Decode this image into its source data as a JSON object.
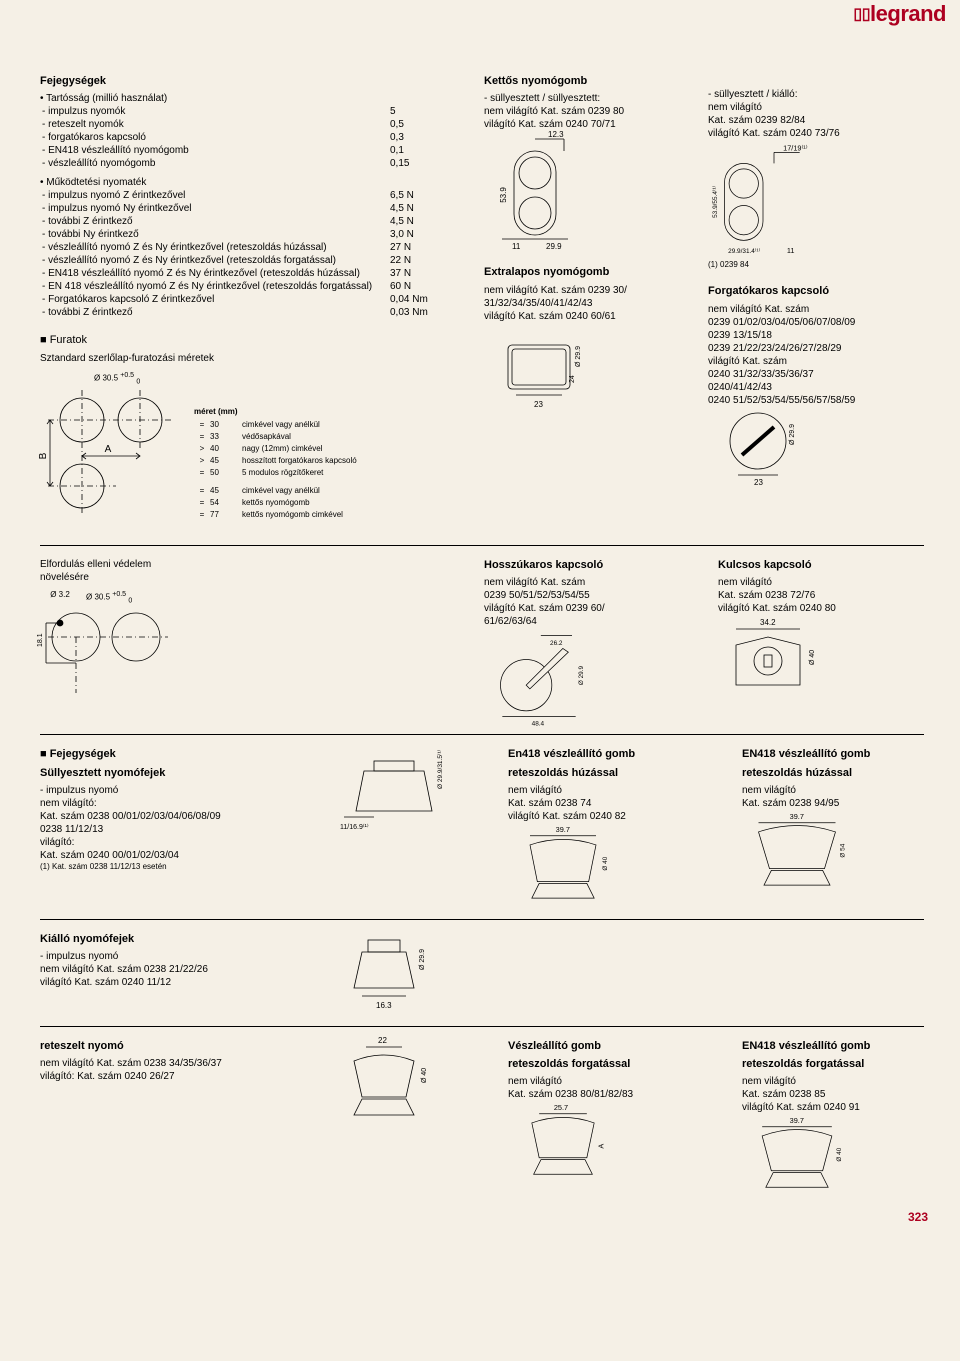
{
  "brand": "legrand",
  "page_number": "323",
  "sec_heads": {
    "title": "Fejegységek",
    "durability_hdr": "• Tartósság (millió használat)",
    "durability": [
      {
        "l": "- impulzus nyomók",
        "v": "5"
      },
      {
        "l": "- reteszelt nyomók",
        "v": "0,5"
      },
      {
        "l": "- forgatókaros kapcsoló",
        "v": "0,3"
      },
      {
        "l": "- EN418 vészleállító nyomógomb",
        "v": "0,1"
      },
      {
        "l": "- vészleállító nyomógomb",
        "v": "0,15"
      }
    ],
    "torque_hdr": "• Működtetési nyomaték",
    "torque": [
      {
        "l": "- impulzus nyomó Z érintkezővel",
        "v": "6,5 N"
      },
      {
        "l": "- impulzus nyomó Ny érintkezővel",
        "v": "4,5 N"
      },
      {
        "l": "- további Z érintkező",
        "v": "4,5 N"
      },
      {
        "l": "- további Ny érintkező",
        "v": "3,0 N"
      },
      {
        "l": "- vészleállító nyomó Z és Ny érintkezővel (reteszoldás húzással)",
        "v": "27 N"
      },
      {
        "l": "- vészleállító nyomó Z és Ny érintkezővel (reteszoldás forgatással)",
        "v": "22 N"
      },
      {
        "l": "- EN418 vészleállító nyomó Z és Ny érintkezővel (reteszoldás húzással)",
        "v": "37 N"
      },
      {
        "l": "- EN 418 vészleállító nyomó Z és Ny érintkezővel (reteszoldás forgatással)",
        "v": "60 N"
      },
      {
        "l": "- Forgatókaros kapcsoló Z érintkezővel",
        "v": "0,04 Nm"
      },
      {
        "l": "- további Z érintkező",
        "v": "0,03 Nm"
      }
    ]
  },
  "drill": {
    "title": "Furatok",
    "subtitle": "Sztandard szerlőlap-furatozási méretek",
    "dia_label": "Ø 30.5",
    "dia_tol_top": "+0.5",
    "dia_tol_bot": "0",
    "a_label": "A",
    "b_label": "B",
    "legend_hdr": "méret (mm)",
    "rows_a": [
      {
        "s": "=",
        "d": "30",
        "t": "cimkével vagy anélkül"
      },
      {
        "s": "=",
        "d": "33",
        "t": "védősapkával"
      },
      {
        "s": ">",
        "d": "40",
        "t": "nagy (12mm) cimkével"
      },
      {
        "s": ">",
        "d": "45",
        "t": "hosszított forgatókaros kapcsoló"
      },
      {
        "s": "=",
        "d": "50",
        "t": "5 modulos rögzítőkeret"
      }
    ],
    "rows_b": [
      {
        "s": "=",
        "d": "45",
        "t": "cimkével vagy anélkül"
      },
      {
        "s": "=",
        "d": "54",
        "t": "kettős nyomógomb"
      },
      {
        "s": "=",
        "d": "77",
        "t": "kettős nyomógomb cimkével"
      }
    ]
  },
  "dual_pb": {
    "title": "Kettős nyomógomb",
    "left_text1": "- süllyesztett / süllyesztett:",
    "left_text2": "nem világító Kat. szám 0239 80",
    "left_text3": "világító Kat. szám 0240 70/71",
    "right_text1": "- süllyesztett / kiálló:",
    "right_text2": "nem világító",
    "right_text3": "Kat. szám 0239 82/84",
    "right_text4": "világító Kat. szám 0240 73/76",
    "dim_top1": "12.3",
    "dim_v1": "53.9",
    "dim_b1": "11",
    "dim_b2": "29.9",
    "r_dim_top": "17/19⁽¹⁾",
    "r_dim_v": "53.9/55.4⁽¹⁾",
    "r_dim_b1": "29.9/31.4⁽¹⁾",
    "r_dim_b2": "11",
    "note": "(1) 0239 84"
  },
  "extralap": {
    "title": "Extralapos nyomógomb",
    "l1": "nem világító Kat. szám 0239 30/",
    "l2": "31/32/34/35/40/41/42/43",
    "l3": "világító Kat. szám 0240 60/61",
    "d1": "Ø 29.9",
    "d2": "24",
    "d3": "23"
  },
  "rotary": {
    "title": "Forgatókaros kapcsoló",
    "l1": "nem világító Kat. szám",
    "l2": "0239 01/02/03/04/05/06/07/08/09",
    "l3": "0239 13/15/18",
    "l4": "0239 21/22/23/24/26/27/28/29",
    "l5": "világító Kat. szám",
    "l6": "0240 31/32/33/35/36/37",
    "l7": "0240/41/42/43",
    "l8": "0240 51/52/53/54/55/56/57/58/59",
    "d1": "Ø 29.9",
    "d2": "23"
  },
  "antirotate": {
    "title1": "Elfordulás elleni védelem",
    "title2": "növelésére",
    "d1": "Ø 3.2",
    "d2": "Ø 30.5",
    "tol_top": "+0.5",
    "tol_bot": "0",
    "d3": "18.1"
  },
  "longlever": {
    "title": "Hosszúkaros kapcsoló",
    "l1": "nem világító Kat. szám",
    "l2": "0239 50/51/52/53/54/55",
    "l3": "világító Kat. szám 0239 60/",
    "l4": "61/62/63/64",
    "d1": "26.2",
    "d2": "Ø 29.9",
    "d3": "48.4"
  },
  "keylock": {
    "title": "Kulcsos kapcsoló",
    "l1": "nem világító",
    "l2": "Kat. szám 0238 72/76",
    "l3": "világító Kat. szám 0240 80",
    "d1": "34.2",
    "d2": "Ø 40"
  },
  "head_units": {
    "title": "Fejegységek",
    "flush_title": "Süllyesztett nyomófejek",
    "p1": "- impulzus nyomó",
    "p2": "nem világító:",
    "p3": "Kat. szám 0238 00/01/02/03/04/06/08/09",
    "p4": "0238 11/12/13",
    "p5": "világító:",
    "p6": "Kat. szám 0240 00/01/02/03/04",
    "note": "(1) Kat. szám 0238 11/12/13 esetén",
    "d1": "Ø 29.9/31.5⁽¹⁾",
    "d2": "11/16.9⁽¹⁾"
  },
  "protr": {
    "title": "Kiálló nyomófejek",
    "p1": "- impulzus nyomó",
    "p2": "nem világító Kat. szám 0238 21/22/26",
    "p3": "világító Kat. szám 0240 11/12",
    "d1": "Ø 29.9",
    "d2": "16.3"
  },
  "en418a": {
    "title": "En418 vészleállító gomb",
    "sub": "reteszoldás húzással",
    "l1": "nem világító",
    "l2": "Kat. szám 0238 74",
    "l3": "világító Kat. szám 0240 82",
    "d1": "39.7",
    "d2": "Ø 40"
  },
  "en418b": {
    "title": "EN418 vészleállító gomb",
    "sub": "reteszoldás húzással",
    "l1": "nem világító",
    "l2": "Kat. szám 0238 94/95",
    "d1": "39.7",
    "d2": "Ø 54"
  },
  "latch": {
    "title": "reteszelt nyomó",
    "l1": "nem világító Kat. szám 0238 34/35/36/37",
    "l2": "világító: Kat. szám 0240 26/27",
    "d1": "22",
    "d2": "Ø 40"
  },
  "ves_rot": {
    "title": "Vészleállító gomb",
    "sub": "reteszoldás forgatással",
    "l1": "nem világító",
    "l2": "Kat. szám 0238 80/81/82/83",
    "d1": "25.7",
    "d2": "A"
  },
  "en418c": {
    "title": "EN418 vészleállító gomb",
    "sub": "reteszoldás forgatással",
    "l1": "nem világító",
    "l2": "Kat. szám 0238 85",
    "l3": "világító Kat. szám 0240 91",
    "d1": "39.7",
    "d2": "Ø 40"
  },
  "colors": {
    "brand": "#ad0020",
    "background": "#f5f0e6",
    "line": "#000000"
  }
}
